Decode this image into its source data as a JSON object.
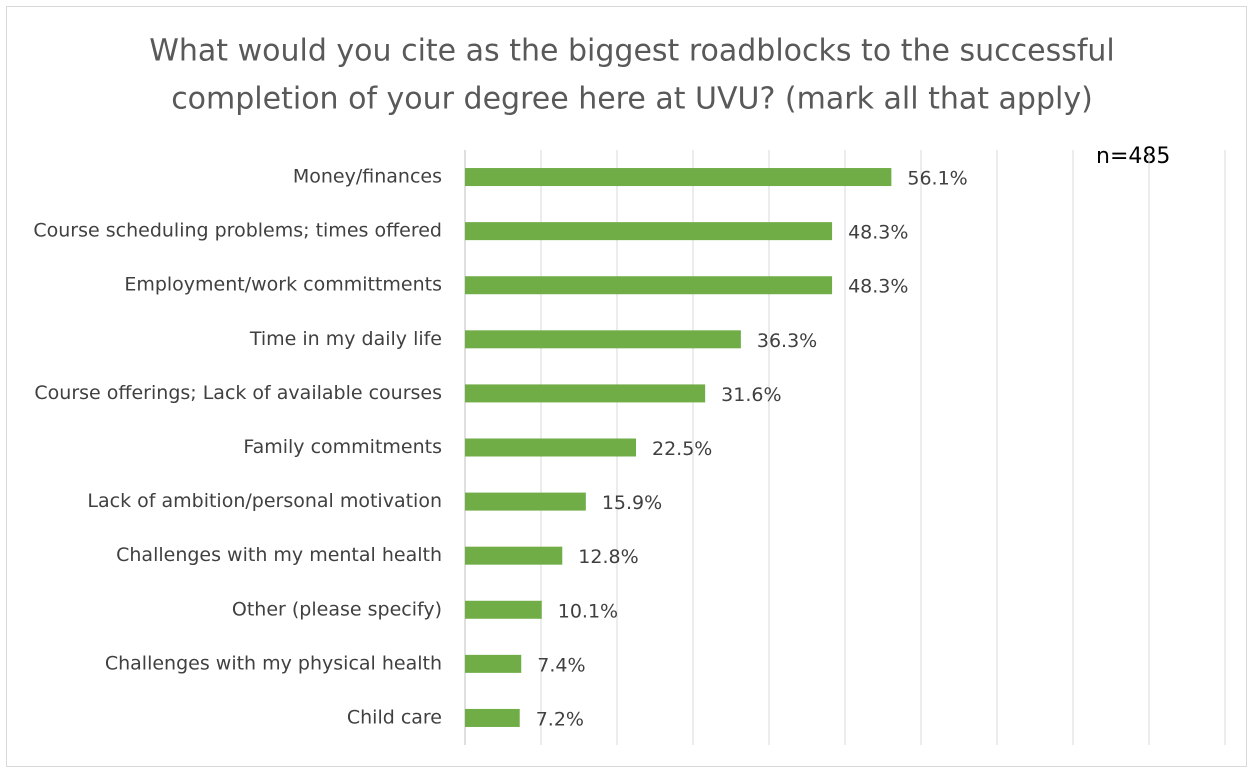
{
  "chart_data": {
    "type": "barh",
    "title": [
      "What would you cite as the biggest roadblocks to the successful",
      "completion of your degree here at UVU? (mark all that apply)"
    ],
    "annotation": "n=485",
    "categories": [
      "Money/finances",
      "Course scheduling problems; times offered",
      "Employment/work committments",
      "Time in my daily life",
      "Course offerings; Lack of available courses",
      "Family commitments",
      "Lack of ambition/personal motivation",
      "Challenges with my mental health",
      "Other (please specify)",
      "Challenges with my physical health",
      "Child care"
    ],
    "values": [
      56.1,
      48.3,
      48.3,
      36.3,
      31.6,
      22.5,
      15.9,
      12.8,
      10.1,
      7.4,
      7.2
    ],
    "value_labels": [
      "56.1%",
      "48.3%",
      "48.3%",
      "36.3%",
      "31.6%",
      "22.5%",
      "15.9%",
      "12.8%",
      "10.1%",
      "7.4%",
      "7.2%"
    ],
    "color": "#70ad47",
    "xlim": [
      0,
      100
    ],
    "xticks": [
      0,
      10,
      20,
      30,
      40,
      50,
      60,
      70,
      80,
      90,
      100
    ],
    "grid": true
  }
}
